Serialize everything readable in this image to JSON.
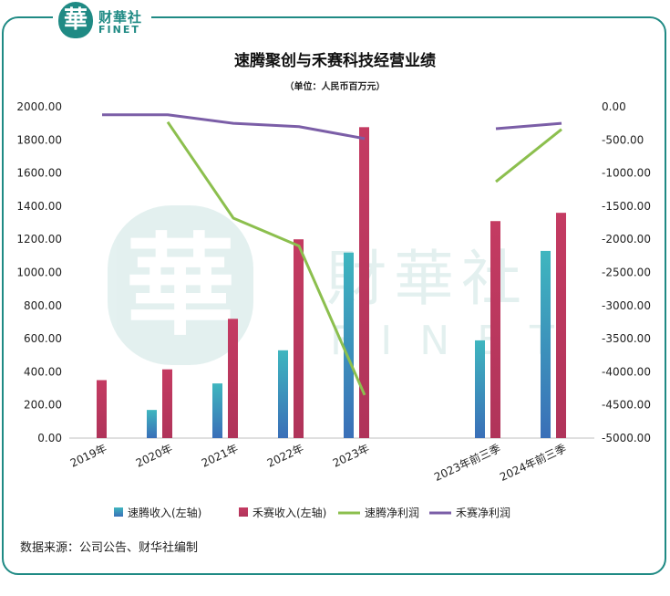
{
  "logo": {
    "seal_char": "華",
    "cn": "财華社",
    "en": "FINET"
  },
  "watermark": {
    "seal_char": "華",
    "cn": "財華社",
    "en": "FINET"
  },
  "title": "速腾聚创与禾赛科技经营业绩",
  "unit": "（单位：人民币百万元）",
  "source": "数据来源：公司公告、财华社编制",
  "chart_data": {
    "type": "bar",
    "categories": [
      "2019年",
      "2020年",
      "2021年",
      "2022年",
      "2023年",
      "",
      "2023年前三季",
      "2024年前三季"
    ],
    "series": [
      {
        "name": "速腾收入(左轴)",
        "axis": "left",
        "kind": "bar",
        "color": "#3a9fbf",
        "values": [
          null,
          170,
          330,
          530,
          1120,
          null,
          590,
          1130
        ]
      },
      {
        "name": "禾赛收入(左轴)",
        "axis": "left",
        "kind": "bar",
        "color": "#c0395f",
        "values": [
          350,
          415,
          720,
          1200,
          1877,
          null,
          1310,
          1360
        ]
      },
      {
        "name": "速腾净利润",
        "axis": "right",
        "kind": "line",
        "color": "#8cbf4e",
        "values": [
          null,
          -230,
          -1680,
          -2100,
          -4350,
          null,
          -1130,
          -340
        ]
      },
      {
        "name": "禾赛净利润",
        "axis": "right",
        "kind": "line",
        "color": "#7b5ea7",
        "values": [
          -120,
          -120,
          -250,
          -300,
          -480,
          null,
          -330,
          -250
        ]
      }
    ],
    "y_left": {
      "min": 0,
      "max": 2000,
      "step": 200,
      "ticks": [
        "0.00",
        "200.00",
        "400.00",
        "600.00",
        "800.00",
        "1000.00",
        "1200.00",
        "1400.00",
        "1600.00",
        "1800.00",
        "2000.00"
      ]
    },
    "y_right": {
      "min": -5000,
      "max": 0,
      "step": 500,
      "ticks": [
        "-5000.00",
        "-4500.00",
        "-4000.00",
        "-3500.00",
        "-3000.00",
        "-2500.00",
        "-2000.00",
        "-1500.00",
        "-1000.00",
        "-500.00",
        "0.00"
      ]
    },
    "legend_position": "bottom",
    "grid": false
  }
}
